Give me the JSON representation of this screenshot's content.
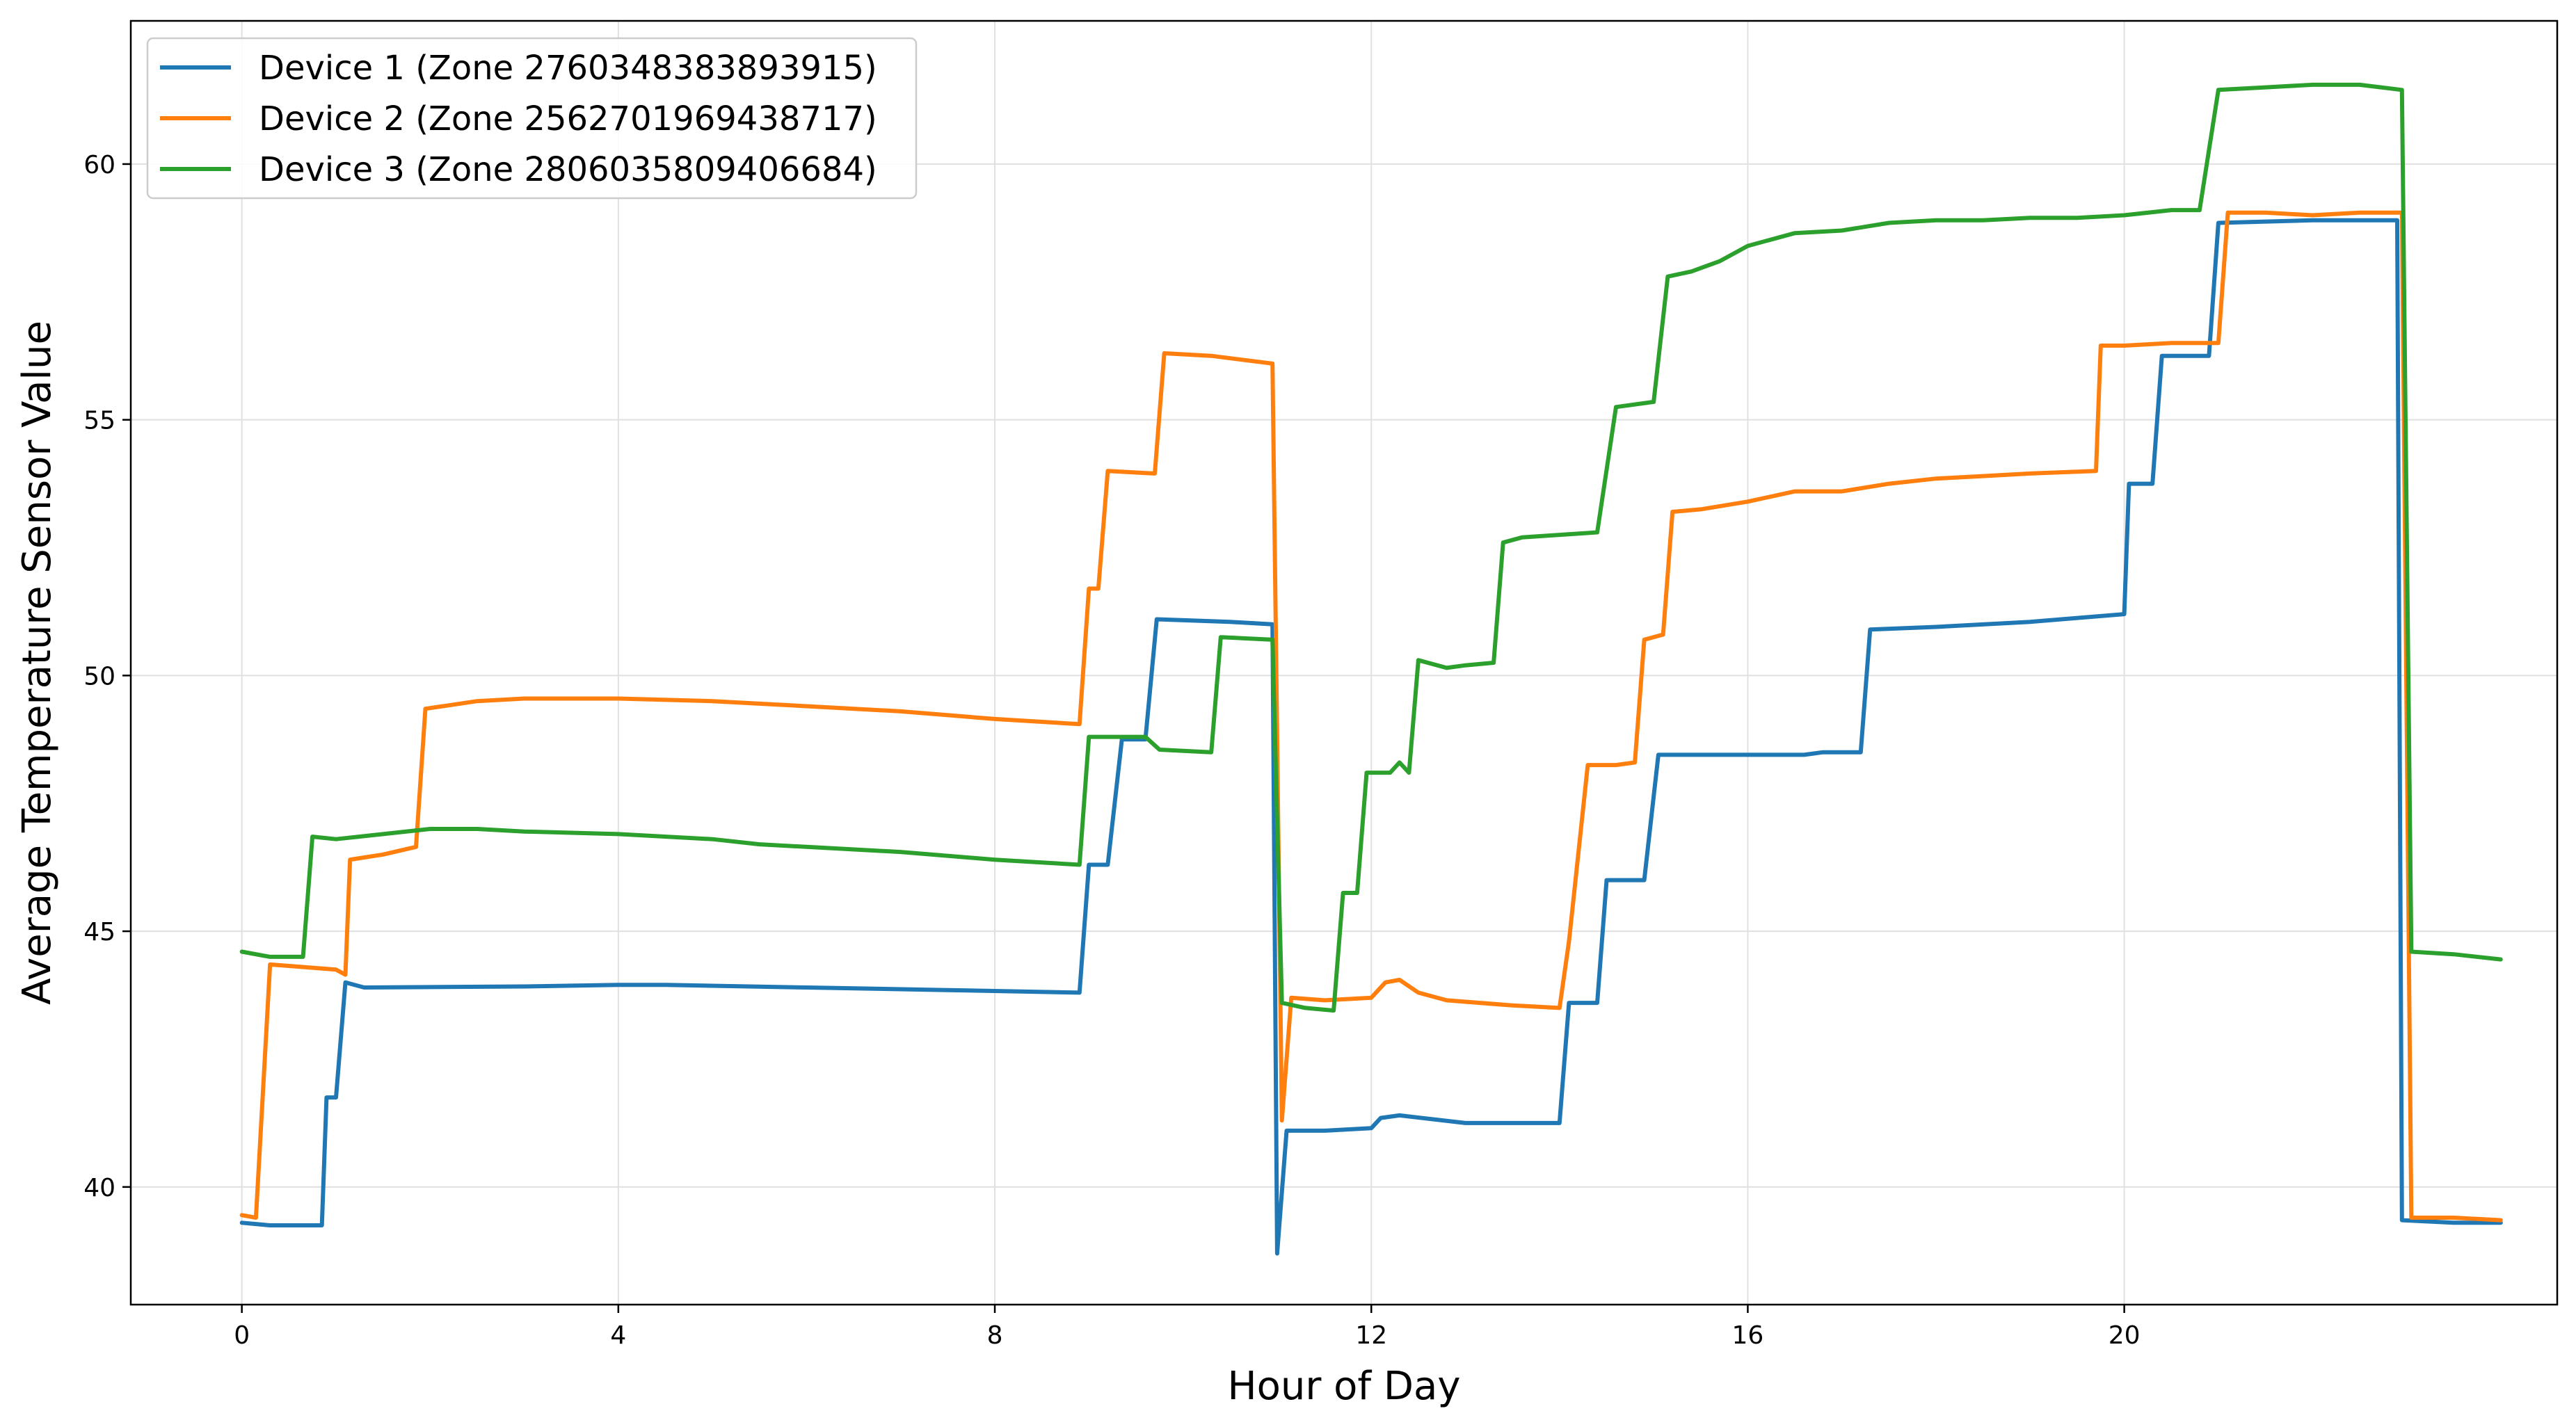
{
  "chart_data": {
    "type": "line",
    "title": "",
    "xlabel": "Hour of Day",
    "ylabel": "Average Temperature Sensor Value",
    "xlim": [
      -1.18,
      24.6
    ],
    "ylim": [
      37.7,
      62.8
    ],
    "xticks": [
      0,
      4,
      8,
      12,
      16,
      20
    ],
    "yticks": [
      40,
      45,
      50,
      55,
      60
    ],
    "grid": true,
    "legend_position": "top-left",
    "series": [
      {
        "name": "Device 1 (Zone 2760348383893915)",
        "color": "#1f77b4",
        "points": [
          [
            0,
            39.3
          ],
          [
            0.3,
            39.25
          ],
          [
            0.85,
            39.25
          ],
          [
            0.9,
            41.75
          ],
          [
            1.0,
            41.75
          ],
          [
            1.1,
            44.0
          ],
          [
            1.3,
            43.9
          ],
          [
            3.0,
            43.92
          ],
          [
            4.0,
            43.95
          ],
          [
            4.5,
            43.95
          ],
          [
            6.0,
            43.9
          ],
          [
            7.5,
            43.85
          ],
          [
            8.9,
            43.8
          ],
          [
            9.0,
            46.3
          ],
          [
            9.2,
            46.3
          ],
          [
            9.35,
            48.75
          ],
          [
            9.6,
            48.75
          ],
          [
            9.72,
            51.1
          ],
          [
            10.5,
            51.05
          ],
          [
            10.95,
            51.0
          ],
          [
            11.0,
            38.7
          ],
          [
            11.1,
            41.1
          ],
          [
            11.5,
            41.1
          ],
          [
            12.0,
            41.15
          ],
          [
            12.1,
            41.35
          ],
          [
            12.3,
            41.4
          ],
          [
            13.0,
            41.25
          ],
          [
            14.0,
            41.25
          ],
          [
            14.1,
            43.6
          ],
          [
            14.4,
            43.6
          ],
          [
            14.5,
            46.0
          ],
          [
            14.9,
            46.0
          ],
          [
            15.05,
            48.45
          ],
          [
            16.0,
            48.45
          ],
          [
            16.6,
            48.45
          ],
          [
            16.8,
            48.5
          ],
          [
            17.2,
            48.5
          ],
          [
            17.3,
            50.9
          ],
          [
            18.0,
            50.95
          ],
          [
            19.0,
            51.05
          ],
          [
            20.0,
            51.2
          ],
          [
            20.05,
            53.75
          ],
          [
            20.3,
            53.75
          ],
          [
            20.4,
            56.25
          ],
          [
            20.9,
            56.25
          ],
          [
            21.0,
            58.85
          ],
          [
            22.0,
            58.9
          ],
          [
            22.9,
            58.9
          ],
          [
            22.95,
            39.35
          ],
          [
            23.5,
            39.3
          ],
          [
            24.0,
            39.3
          ]
        ]
      },
      {
        "name": "Device 2 (Zone 2562701969438717)",
        "color": "#ff7f0e",
        "points": [
          [
            0,
            39.45
          ],
          [
            0.15,
            39.4
          ],
          [
            0.3,
            44.35
          ],
          [
            1.0,
            44.25
          ],
          [
            1.1,
            44.15
          ],
          [
            1.15,
            46.4
          ],
          [
            1.5,
            46.5
          ],
          [
            1.85,
            46.65
          ],
          [
            1.95,
            49.35
          ],
          [
            2.5,
            49.5
          ],
          [
            3.0,
            49.55
          ],
          [
            4.0,
            49.55
          ],
          [
            5.0,
            49.5
          ],
          [
            6.0,
            49.4
          ],
          [
            7.0,
            49.3
          ],
          [
            8.0,
            49.15
          ],
          [
            8.9,
            49.05
          ],
          [
            9.0,
            51.7
          ],
          [
            9.1,
            51.7
          ],
          [
            9.2,
            54.0
          ],
          [
            9.7,
            53.95
          ],
          [
            9.8,
            56.3
          ],
          [
            10.3,
            56.25
          ],
          [
            10.95,
            56.1
          ],
          [
            11.05,
            41.3
          ],
          [
            11.15,
            43.7
          ],
          [
            11.5,
            43.65
          ],
          [
            12.0,
            43.7
          ],
          [
            12.15,
            44.0
          ],
          [
            12.3,
            44.05
          ],
          [
            12.5,
            43.8
          ],
          [
            12.8,
            43.65
          ],
          [
            13.5,
            43.55
          ],
          [
            14.0,
            43.5
          ],
          [
            14.1,
            44.8
          ],
          [
            14.3,
            48.25
          ],
          [
            14.6,
            48.25
          ],
          [
            14.8,
            48.3
          ],
          [
            14.9,
            50.7
          ],
          [
            15.1,
            50.8
          ],
          [
            15.2,
            53.2
          ],
          [
            15.5,
            53.25
          ],
          [
            16.0,
            53.4
          ],
          [
            16.5,
            53.6
          ],
          [
            17.0,
            53.6
          ],
          [
            17.5,
            53.75
          ],
          [
            18.0,
            53.85
          ],
          [
            18.5,
            53.9
          ],
          [
            19.0,
            53.95
          ],
          [
            19.7,
            54.0
          ],
          [
            19.75,
            56.45
          ],
          [
            20.0,
            56.45
          ],
          [
            20.5,
            56.5
          ],
          [
            21.0,
            56.5
          ],
          [
            21.1,
            59.05
          ],
          [
            21.5,
            59.05
          ],
          [
            22.0,
            59.0
          ],
          [
            22.5,
            59.05
          ],
          [
            22.95,
            59.05
          ],
          [
            23.05,
            39.4
          ],
          [
            23.5,
            39.4
          ],
          [
            24.0,
            39.35
          ]
        ]
      },
      {
        "name": "Device 3 (Zone 2806035809406684)",
        "color": "#2ca02c",
        "points": [
          [
            0,
            44.6
          ],
          [
            0.3,
            44.5
          ],
          [
            0.65,
            44.5
          ],
          [
            0.75,
            46.85
          ],
          [
            1.0,
            46.8
          ],
          [
            1.5,
            46.9
          ],
          [
            2.0,
            47.0
          ],
          [
            2.5,
            47.0
          ],
          [
            3.0,
            46.95
          ],
          [
            4.0,
            46.9
          ],
          [
            5.0,
            46.8
          ],
          [
            5.5,
            46.7
          ],
          [
            6.0,
            46.65
          ],
          [
            7.0,
            46.55
          ],
          [
            8.0,
            46.4
          ],
          [
            8.9,
            46.3
          ],
          [
            9.0,
            48.8
          ],
          [
            9.3,
            48.8
          ],
          [
            9.6,
            48.8
          ],
          [
            9.75,
            48.55
          ],
          [
            10.3,
            48.5
          ],
          [
            10.4,
            50.75
          ],
          [
            10.95,
            50.7
          ],
          [
            11.05,
            43.6
          ],
          [
            11.3,
            43.5
          ],
          [
            11.6,
            43.45
          ],
          [
            11.7,
            45.75
          ],
          [
            11.85,
            45.75
          ],
          [
            11.95,
            48.1
          ],
          [
            12.2,
            48.1
          ],
          [
            12.3,
            48.3
          ],
          [
            12.4,
            48.1
          ],
          [
            12.5,
            50.3
          ],
          [
            12.8,
            50.15
          ],
          [
            13.0,
            50.2
          ],
          [
            13.3,
            50.25
          ],
          [
            13.4,
            52.6
          ],
          [
            13.6,
            52.7
          ],
          [
            14.0,
            52.75
          ],
          [
            14.4,
            52.8
          ],
          [
            14.6,
            55.25
          ],
          [
            15.0,
            55.35
          ],
          [
            15.15,
            57.8
          ],
          [
            15.4,
            57.9
          ],
          [
            15.7,
            58.1
          ],
          [
            16.0,
            58.4
          ],
          [
            16.5,
            58.65
          ],
          [
            17.0,
            58.7
          ],
          [
            17.5,
            58.85
          ],
          [
            18.0,
            58.9
          ],
          [
            18.5,
            58.9
          ],
          [
            19.0,
            58.95
          ],
          [
            19.5,
            58.95
          ],
          [
            20.0,
            59.0
          ],
          [
            20.5,
            59.1
          ],
          [
            20.8,
            59.1
          ],
          [
            21.0,
            61.45
          ],
          [
            21.5,
            61.5
          ],
          [
            22.0,
            61.55
          ],
          [
            22.5,
            61.55
          ],
          [
            22.95,
            61.45
          ],
          [
            23.05,
            44.6
          ],
          [
            23.5,
            44.55
          ],
          [
            24.0,
            44.45
          ]
        ]
      }
    ]
  }
}
